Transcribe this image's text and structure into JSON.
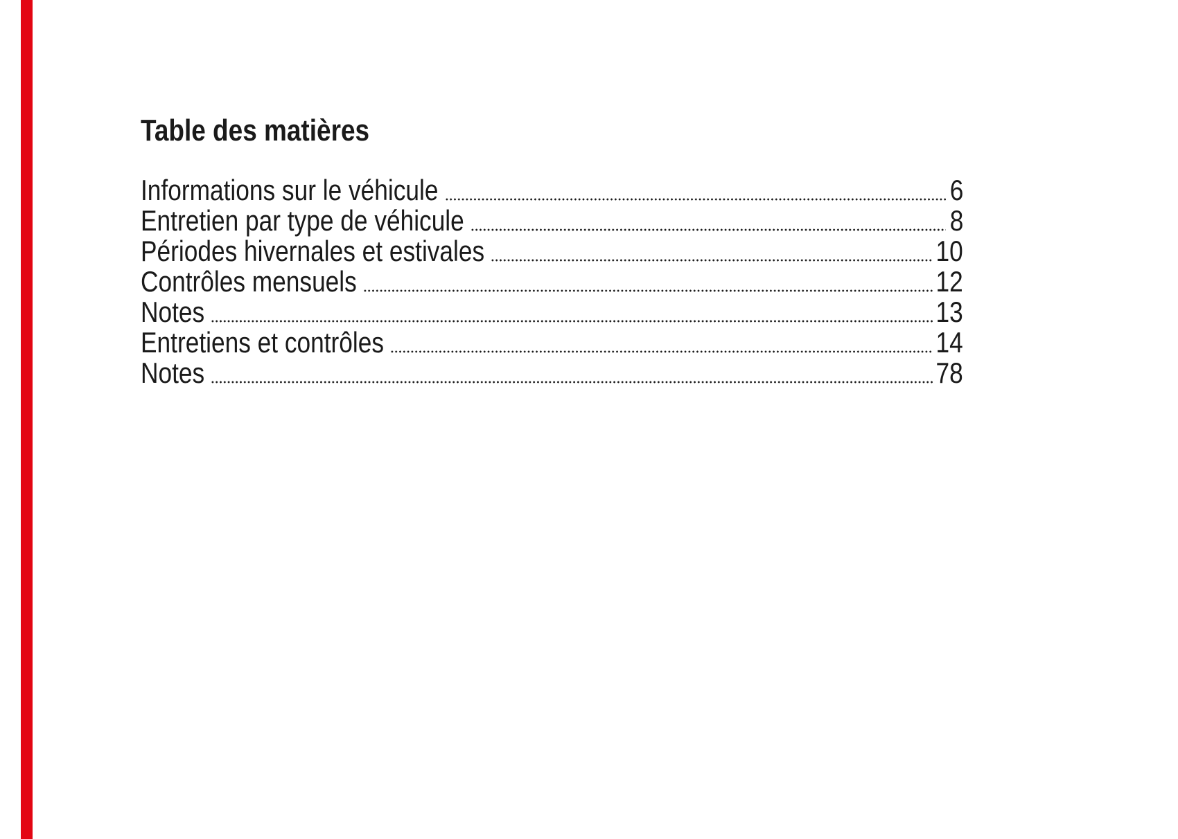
{
  "page": {
    "title": "Table des matières",
    "accent_bar_color": "#e30613",
    "text_color": "#1a1a1a"
  },
  "toc": {
    "entries": [
      {
        "label": "Informations sur le véhicule",
        "page": "6"
      },
      {
        "label": "Entretien par type de véhicule",
        "page": "8"
      },
      {
        "label": "Périodes hivernales et estivales",
        "page": "10"
      },
      {
        "label": "Contrôles mensuels",
        "page": "12"
      },
      {
        "label": "Notes",
        "page": "13"
      },
      {
        "label": "Entretiens et contrôles",
        "page": "14"
      },
      {
        "label": "Notes",
        "page": "78"
      }
    ]
  }
}
